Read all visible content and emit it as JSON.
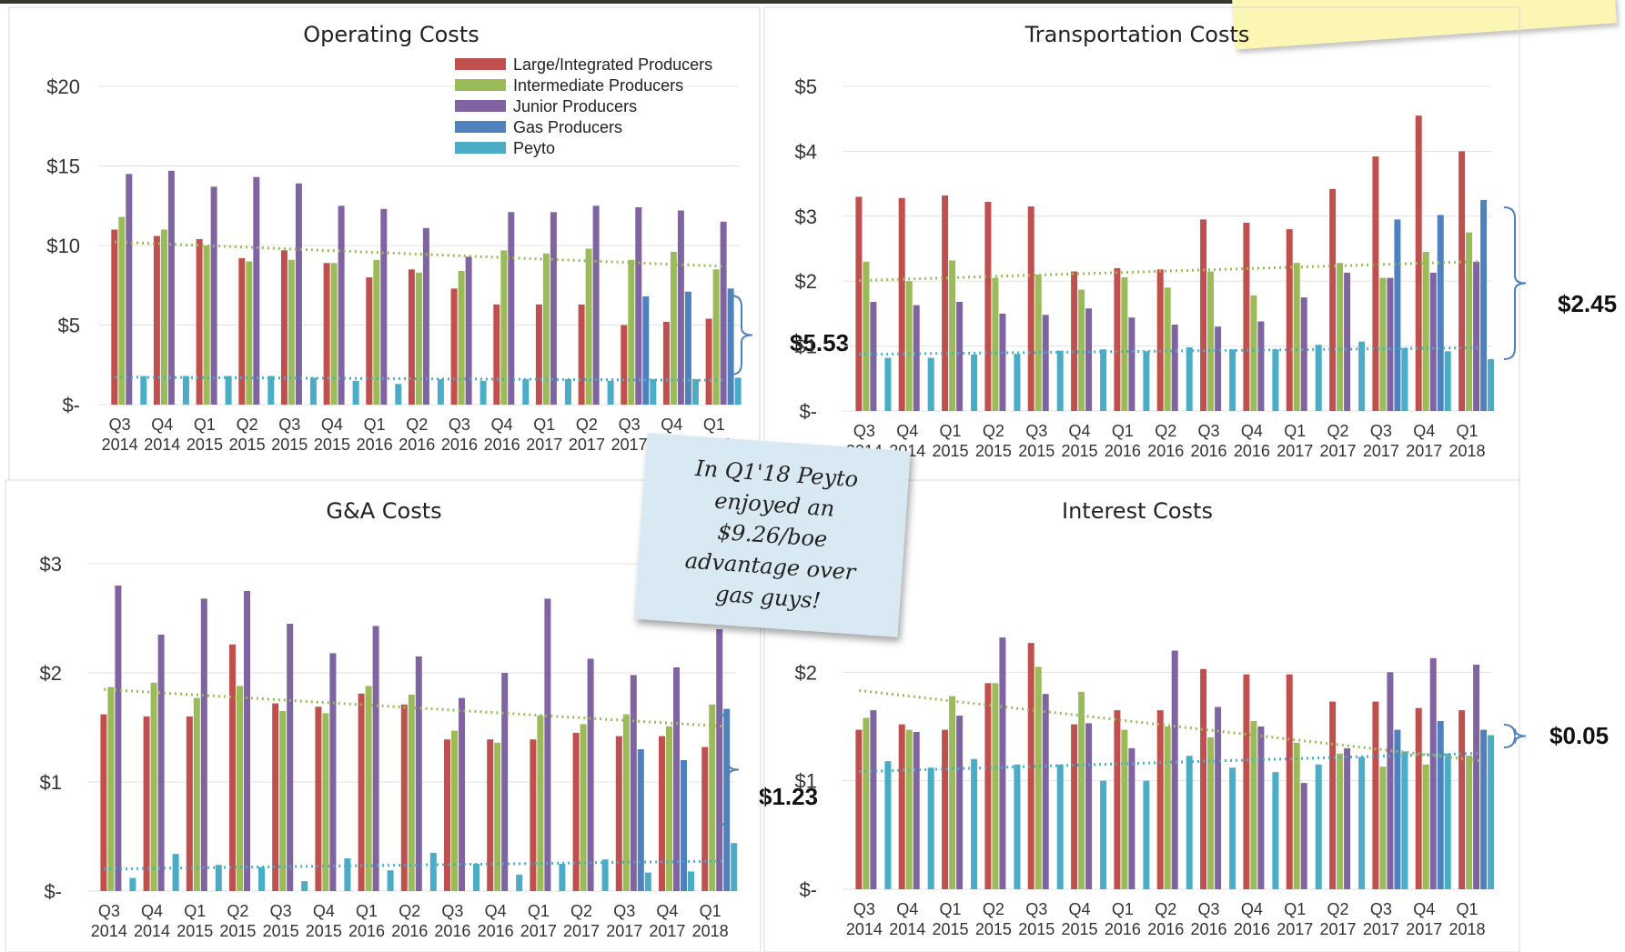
{
  "note_text": "In Q1'18 Peyto\nenjoyed an\n$9.26/boe\nadvantage over\ngas guys!",
  "colors": {
    "Large/Integrated Producers": "#c0504d",
    "Intermediate Producers": "#9bbb59",
    "Junior Producers": "#8064a2",
    "Gas Producers": "#4f81bd",
    "Peyto": "#4bacc6"
  },
  "chart_data": [
    {
      "type": "bar",
      "title": "Operating Costs",
      "categories": [
        "Q3 2014",
        "Q4 2014",
        "Q1 2015",
        "Q2 2015",
        "Q3 2015",
        "Q4 2015",
        "Q1 2016",
        "Q2 2016",
        "Q3 2016",
        "Q4 2016",
        "Q1 2017",
        "Q2 2017",
        "Q3 2017",
        "Q4 2017",
        "Q1 2018"
      ],
      "ylim": [
        0,
        20
      ],
      "yticks": [
        "$-",
        "$5",
        "$10",
        "$15",
        "$20"
      ],
      "legend": "top-right",
      "series": [
        {
          "name": "Large/Integrated Producers",
          "values": [
            11.0,
            10.6,
            10.4,
            9.2,
            9.7,
            8.9,
            8.0,
            8.5,
            7.3,
            6.3,
            6.3,
            6.3,
            5.0,
            5.2,
            5.4
          ]
        },
        {
          "name": "Intermediate Producers",
          "values": [
            11.8,
            11.0,
            10.0,
            9.0,
            9.1,
            8.9,
            9.1,
            8.3,
            8.4,
            9.7,
            9.5,
            9.8,
            9.1,
            9.6,
            8.5
          ]
        },
        {
          "name": "Junior Producers",
          "values": [
            14.5,
            14.7,
            13.7,
            14.3,
            13.9,
            12.5,
            12.3,
            11.1,
            9.3,
            12.1,
            12.1,
            12.5,
            12.4,
            12.2,
            11.5
          ]
        },
        {
          "name": "Gas Producers",
          "values": [
            null,
            null,
            null,
            null,
            null,
            null,
            null,
            null,
            null,
            null,
            null,
            null,
            6.8,
            7.1,
            7.3
          ]
        },
        {
          "name": "Peyto",
          "values": [
            1.8,
            1.8,
            1.8,
            1.8,
            1.7,
            1.5,
            1.3,
            1.6,
            1.5,
            1.6,
            1.6,
            1.5,
            1.6,
            1.6,
            1.7
          ]
        }
      ],
      "annotation": "$5.53"
    },
    {
      "type": "bar",
      "title": "Transportation Costs",
      "categories": [
        "Q3 2014",
        "Q4 2014",
        "Q1 2015",
        "Q2 2015",
        "Q3 2015",
        "Q4 2015",
        "Q1 2016",
        "Q2 2016",
        "Q3 2016",
        "Q4 2016",
        "Q1 2017",
        "Q2 2017",
        "Q3 2017",
        "Q4 2017",
        "Q1 2018"
      ],
      "ylim": [
        0,
        5
      ],
      "yticks": [
        "$-",
        "$1",
        "$2",
        "$3",
        "$4",
        "$5"
      ],
      "series": [
        {
          "name": "Large/Integrated Producers",
          "values": [
            3.3,
            3.28,
            3.32,
            3.22,
            3.15,
            2.15,
            2.2,
            2.18,
            2.95,
            2.9,
            2.8,
            3.42,
            3.92,
            4.55,
            4.0
          ]
        },
        {
          "name": "Intermediate Producers",
          "values": [
            2.3,
            2.0,
            2.32,
            2.05,
            2.1,
            1.87,
            2.06,
            1.9,
            2.15,
            1.78,
            2.28,
            2.28,
            2.05,
            2.45,
            2.75
          ]
        },
        {
          "name": "Junior Producers",
          "values": [
            1.68,
            1.63,
            1.68,
            1.5,
            1.48,
            1.58,
            1.44,
            1.33,
            1.3,
            1.38,
            1.75,
            2.13,
            2.05,
            2.13,
            2.3
          ]
        },
        {
          "name": "Gas Producers",
          "values": [
            null,
            null,
            null,
            null,
            null,
            null,
            null,
            null,
            null,
            null,
            null,
            null,
            2.95,
            3.02,
            3.25
          ]
        },
        {
          "name": "Peyto",
          "values": [
            0.82,
            0.82,
            0.87,
            0.88,
            0.93,
            0.95,
            0.92,
            0.98,
            0.95,
            0.95,
            1.02,
            1.07,
            0.97,
            0.92,
            0.8
          ]
        }
      ],
      "annotation": "$2.45"
    },
    {
      "type": "bar",
      "title": "G&A Costs",
      "categories": [
        "Q3 2014",
        "Q4 2014",
        "Q1 2015",
        "Q2 2015",
        "Q3 2015",
        "Q4 2015",
        "Q1 2016",
        "Q2 2016",
        "Q3 2016",
        "Q4 2016",
        "Q1 2017",
        "Q2 2017",
        "Q3 2017",
        "Q4 2017",
        "Q1 2018"
      ],
      "ylim": [
        0,
        3
      ],
      "yticks": [
        "$-",
        "$1",
        "$2",
        "$3"
      ],
      "series": [
        {
          "name": "Large/Integrated Producers",
          "values": [
            1.62,
            1.6,
            1.6,
            2.26,
            1.72,
            1.69,
            1.81,
            1.71,
            1.39,
            1.39,
            1.39,
            1.45,
            1.42,
            1.42,
            1.32
          ]
        },
        {
          "name": "Intermediate Producers",
          "values": [
            1.87,
            1.91,
            1.77,
            1.88,
            1.65,
            1.63,
            1.88,
            1.8,
            1.47,
            1.36,
            1.61,
            1.53,
            1.62,
            1.51,
            1.71
          ]
        },
        {
          "name": "Junior Producers",
          "values": [
            2.8,
            2.35,
            2.68,
            2.75,
            2.45,
            2.18,
            2.43,
            2.15,
            1.77,
            2.0,
            2.68,
            2.13,
            1.98,
            2.05,
            2.4
          ]
        },
        {
          "name": "Gas Producers",
          "values": [
            null,
            null,
            null,
            null,
            null,
            null,
            null,
            null,
            null,
            null,
            null,
            null,
            1.3,
            1.2,
            1.67
          ]
        },
        {
          "name": "Peyto",
          "values": [
            0.12,
            0.34,
            0.24,
            0.22,
            0.09,
            0.3,
            0.19,
            0.35,
            0.25,
            0.15,
            0.25,
            0.29,
            0.17,
            0.18,
            0.44
          ]
        }
      ],
      "annotation": "$1.23"
    },
    {
      "type": "bar",
      "title": "Interest Costs",
      "categories": [
        "Q3 2014",
        "Q4 2014",
        "Q1 2015",
        "Q2 2015",
        "Q3 2015",
        "Q4 2015",
        "Q1 2016",
        "Q2 2016",
        "Q3 2016",
        "Q4 2016",
        "Q1 2017",
        "Q2 2017",
        "Q3 2017",
        "Q4 2017",
        "Q1 2018"
      ],
      "ylim": [
        0,
        3
      ],
      "yticks": [
        "$-",
        "$1",
        "$2"
      ],
      "series": [
        {
          "name": "Large/Integrated Producers",
          "values": [
            1.47,
            1.52,
            1.47,
            1.9,
            2.27,
            1.52,
            1.65,
            1.65,
            2.03,
            1.98,
            1.98,
            1.73,
            1.73,
            1.67,
            1.65
          ]
        },
        {
          "name": "Intermediate Producers",
          "values": [
            1.58,
            1.47,
            1.78,
            1.9,
            2.05,
            1.82,
            1.47,
            1.5,
            1.4,
            1.55,
            1.35,
            1.25,
            1.13,
            1.15,
            1.23
          ]
        },
        {
          "name": "Junior Producers",
          "values": [
            1.65,
            1.45,
            1.6,
            2.32,
            1.8,
            1.53,
            1.3,
            2.2,
            1.68,
            1.5,
            0.98,
            1.3,
            2.0,
            2.13,
            2.07
          ]
        },
        {
          "name": "Gas Producers",
          "values": [
            null,
            null,
            null,
            null,
            null,
            null,
            null,
            null,
            null,
            null,
            null,
            null,
            1.47,
            1.55,
            1.47
          ]
        },
        {
          "name": "Peyto",
          "values": [
            1.18,
            1.12,
            1.2,
            1.15,
            1.15,
            1.0,
            1.0,
            1.23,
            1.12,
            1.08,
            1.15,
            1.22,
            1.27,
            1.25,
            1.42
          ]
        }
      ],
      "annotation": "$0.05"
    }
  ]
}
